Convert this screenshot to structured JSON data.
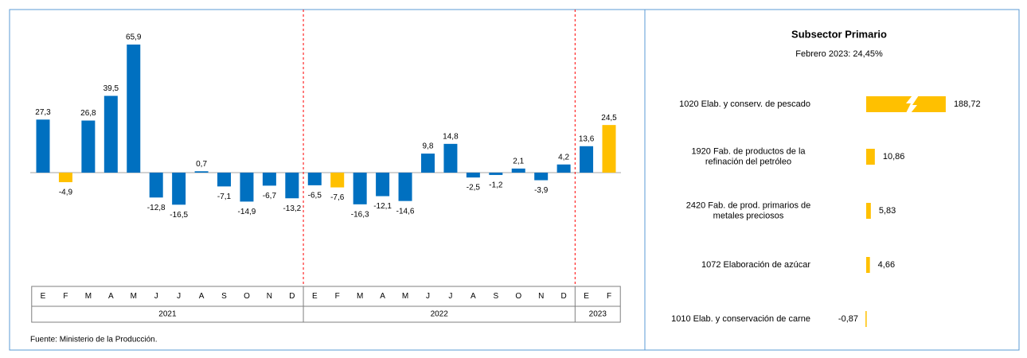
{
  "chart_data": [
    {
      "type": "bar",
      "groups": [
        {
          "name": "2021",
          "categories": [
            "E",
            "F",
            "M",
            "A",
            "M",
            "J",
            "J",
            "A",
            "S",
            "O",
            "N",
            "D"
          ],
          "values": [
            27.3,
            -4.9,
            26.8,
            39.5,
            65.9,
            -12.8,
            -16.5,
            0.7,
            -7.1,
            -14.9,
            -6.7,
            -13.2
          ],
          "value_labels": [
            "27,3",
            "-4,9",
            "26,8",
            "39,5",
            "65,9",
            "-12,8",
            "-16,5",
            "0,7",
            "-7,1",
            "-14,9",
            "-6,7",
            "-13,2"
          ],
          "colors": [
            "#0070c0",
            "#ffc000",
            "#0070c0",
            "#0070c0",
            "#0070c0",
            "#0070c0",
            "#0070c0",
            "#0070c0",
            "#0070c0",
            "#0070c0",
            "#0070c0",
            "#0070c0"
          ]
        },
        {
          "name": "2022",
          "categories": [
            "E",
            "F",
            "M",
            "A",
            "M",
            "J",
            "J",
            "A",
            "S",
            "O",
            "N",
            "D"
          ],
          "values": [
            -6.5,
            -7.6,
            -16.3,
            -12.1,
            -14.6,
            9.8,
            14.8,
            -2.5,
            -1.2,
            2.1,
            -3.9,
            4.2
          ],
          "value_labels": [
            "-6,5",
            "-7,6",
            "-16,3",
            "-12,1",
            "-14,6",
            "9,8",
            "14,8",
            "-2,5",
            "-1,2",
            "2,1",
            "-3,9",
            "4,2"
          ],
          "colors": [
            "#0070c0",
            "#ffc000",
            "#0070c0",
            "#0070c0",
            "#0070c0",
            "#0070c0",
            "#0070c0",
            "#0070c0",
            "#0070c0",
            "#0070c0",
            "#0070c0",
            "#0070c0"
          ]
        },
        {
          "name": "2023",
          "categories": [
            "E",
            "F"
          ],
          "values": [
            13.6,
            24.5
          ],
          "value_labels": [
            "13,6",
            "24,5"
          ],
          "colors": [
            "#0070c0",
            "#ffc000"
          ]
        }
      ],
      "source": "Fuente: Ministerio de la Producción."
    },
    {
      "type": "barh",
      "title": "Subsector Primario",
      "subtitle": "Febrero 2023: 24,45%",
      "categories": [
        [
          "1020 Elab. y conserv. de pescado"
        ],
        [
          "1920 Fab. de productos de la",
          "refinación del petróleo"
        ],
        [
          "2420 Fab. de prod. primarios de",
          "metales preciosos"
        ],
        [
          "1072 Elaboración de azúcar"
        ],
        [
          "1010 Elab. y conservación de carne"
        ]
      ],
      "values": [
        188.72,
        10.86,
        5.83,
        4.66,
        -0.87
      ],
      "value_labels": [
        "188,72",
        "10,86",
        "5,83",
        "4,66",
        "-0,87"
      ],
      "color": "#ffc000"
    }
  ]
}
